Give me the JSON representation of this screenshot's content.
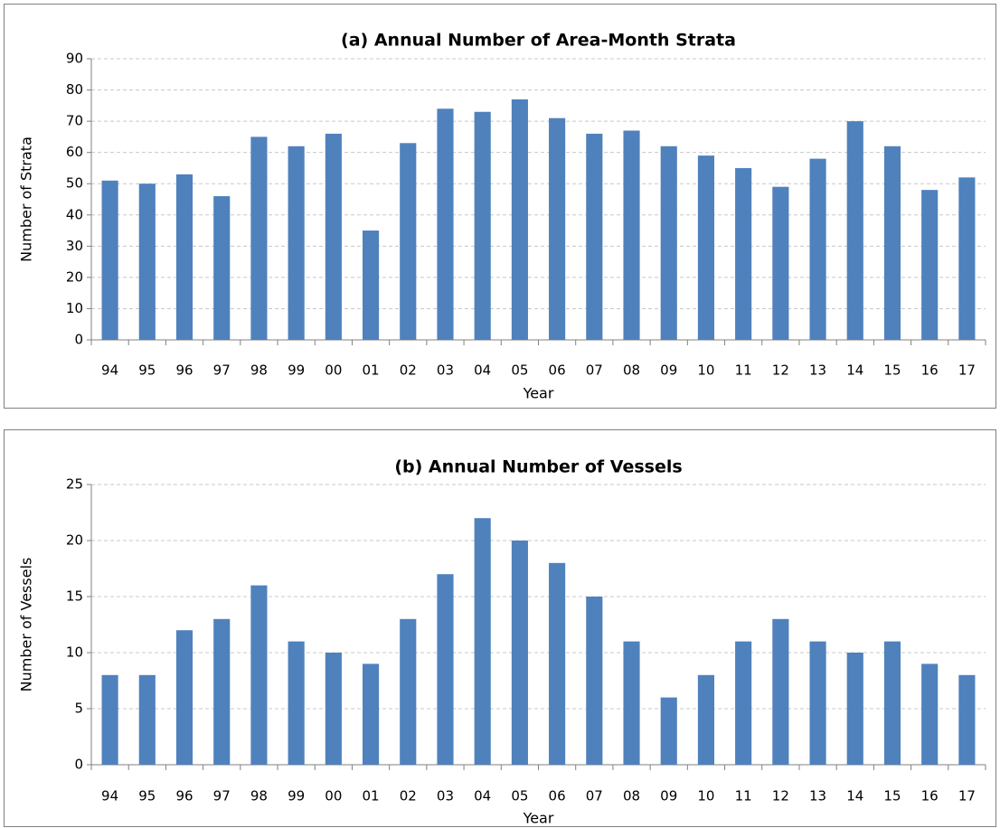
{
  "chart_data": [
    {
      "type": "bar",
      "title": "(a) Annual Number of Area-Month Strata",
      "x_label": "Year",
      "y_label": "Number of Strata",
      "categories": [
        "94",
        "95",
        "96",
        "97",
        "98",
        "99",
        "00",
        "01",
        "02",
        "03",
        "04",
        "05",
        "06",
        "07",
        "08",
        "09",
        "10",
        "11",
        "12",
        "13",
        "14",
        "15",
        "16",
        "17"
      ],
      "values": [
        51,
        50,
        53,
        46,
        65,
        62,
        66,
        35,
        63,
        74,
        73,
        77,
        71,
        66,
        67,
        62,
        59,
        55,
        49,
        58,
        70,
        62,
        48,
        52
      ],
      "color": "#4f81bd",
      "ylim": [
        0,
        90
      ],
      "yticks": [
        0,
        10,
        20,
        30,
        40,
        50,
        60,
        70,
        80,
        90
      ],
      "grid": true
    },
    {
      "type": "bar",
      "title": "(b) Annual Number of Vessels",
      "x_label": "Year",
      "y_label": "Number of Vessels",
      "categories": [
        "94",
        "95",
        "96",
        "97",
        "98",
        "99",
        "00",
        "01",
        "02",
        "03",
        "04",
        "05",
        "06",
        "07",
        "08",
        "09",
        "10",
        "11",
        "12",
        "13",
        "14",
        "15",
        "16",
        "17"
      ],
      "values": [
        8,
        8,
        12,
        13,
        16,
        11,
        10,
        9,
        13,
        17,
        22,
        20,
        18,
        15,
        11,
        6,
        8,
        11,
        13,
        11,
        10,
        11,
        9,
        8
      ],
      "color": "#4f81bd",
      "ylim": [
        0,
        25
      ],
      "yticks": [
        0,
        5,
        10,
        15,
        20,
        25
      ],
      "grid": true
    }
  ]
}
